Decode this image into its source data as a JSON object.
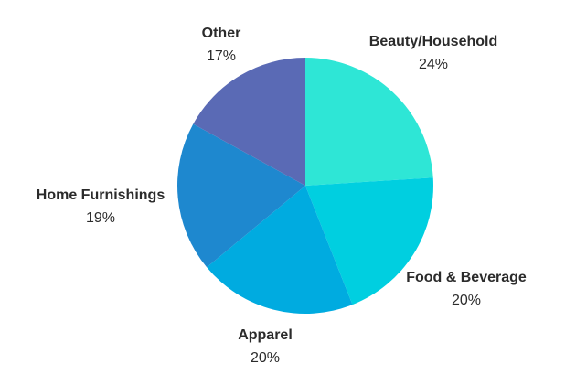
{
  "chart_data": {
    "type": "pie",
    "start_angle_deg": 0,
    "direction": "clockwise",
    "slices": [
      {
        "label": "Beauty/Household",
        "value": 24,
        "value_label": "24%",
        "color": "#2ee6d6"
      },
      {
        "label": "Food & Beverage",
        "value": 20,
        "value_label": "20%",
        "color": "#00cfe0"
      },
      {
        "label": "Apparel",
        "value": 20,
        "value_label": "20%",
        "color": "#00abe0"
      },
      {
        "label": "Home Furnishings",
        "value": 19,
        "value_label": "19%",
        "color": "#1e88cf"
      },
      {
        "label": "Other",
        "value": 17,
        "value_label": "17%",
        "color": "#5a6ab5"
      }
    ]
  }
}
